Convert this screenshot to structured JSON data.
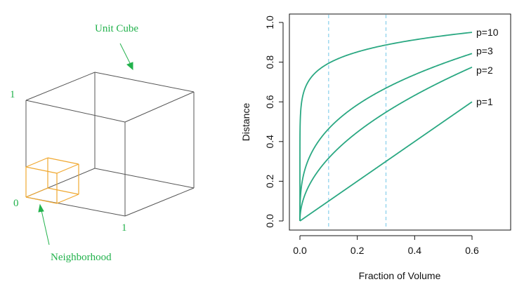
{
  "left_panel": {
    "title_label": "Unit Cube",
    "neighborhood_label": "Neighborhood",
    "axis_one_top": "1",
    "axis_zero": "0",
    "axis_one_right": "1",
    "colors": {
      "cube_edge": "#555555",
      "neighborhood": "#f0a830",
      "annotation": "#22b24c"
    }
  },
  "chart_data": {
    "type": "line",
    "xlabel": "Fraction of Volume",
    "ylabel": "Distance",
    "xlim": [
      0,
      0.72
    ],
    "ylim": [
      0,
      1.0
    ],
    "xticks": [
      0.0,
      0.2,
      0.4,
      0.6
    ],
    "xtick_labels": [
      "0.0",
      "0.2",
      "0.4",
      "0.6"
    ],
    "yticks": [
      0.0,
      0.2,
      0.4,
      0.6,
      0.8,
      1.0
    ],
    "ytick_labels": [
      "0.0",
      "0.2",
      "0.4",
      "0.6",
      "0.8",
      "1.0"
    ],
    "grid": false,
    "series": [
      {
        "name": "p=10",
        "exponent": 10,
        "x": [
          0,
          0.0001,
          0.001,
          0.005,
          0.01,
          0.02,
          0.05,
          0.1,
          0.15,
          0.2,
          0.3,
          0.4,
          0.5,
          0.6
        ],
        "y": [
          0,
          0.398,
          0.501,
          0.589,
          0.631,
          0.676,
          0.741,
          0.794,
          0.827,
          0.851,
          0.887,
          0.912,
          0.933,
          0.95
        ]
      },
      {
        "name": "p=3",
        "exponent": 3,
        "x": [
          0,
          0.001,
          0.01,
          0.05,
          0.1,
          0.15,
          0.2,
          0.3,
          0.4,
          0.5,
          0.6
        ],
        "y": [
          0,
          0.1,
          0.215,
          0.368,
          0.464,
          0.531,
          0.585,
          0.669,
          0.737,
          0.794,
          0.843
        ]
      },
      {
        "name": "p=2",
        "exponent": 2,
        "x": [
          0,
          0.001,
          0.01,
          0.05,
          0.1,
          0.15,
          0.2,
          0.3,
          0.4,
          0.5,
          0.6
        ],
        "y": [
          0,
          0.032,
          0.1,
          0.224,
          0.316,
          0.387,
          0.447,
          0.548,
          0.632,
          0.707,
          0.775
        ]
      },
      {
        "name": "p=1",
        "exponent": 1,
        "x": [
          0,
          0.1,
          0.2,
          0.3,
          0.4,
          0.5,
          0.6
        ],
        "y": [
          0,
          0.1,
          0.2,
          0.3,
          0.4,
          0.5,
          0.6
        ]
      }
    ],
    "vlines": [
      0.1,
      0.3
    ],
    "colors": {
      "line": "#2aa882",
      "vline": "#87ceeb",
      "axis": "#111111"
    }
  }
}
